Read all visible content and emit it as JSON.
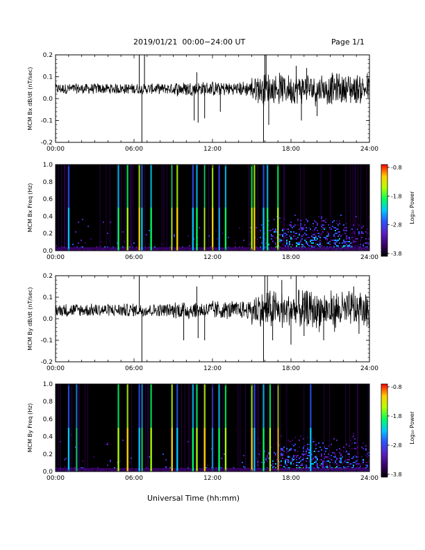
{
  "header": {
    "title": "2019/01/21  00:00−24:00 UT",
    "page": "Page 1/1"
  },
  "footer": {
    "xlabel": "Universal Time (hh:mm)"
  },
  "colorbar": {
    "title": "Log₁₀ Power",
    "ticks": [
      "-0.8",
      "-1.8",
      "-2.8",
      "-3.8"
    ],
    "range": [
      -3.8,
      -0.8
    ]
  },
  "colors": {
    "trace": "#000000",
    "frame": "#000000",
    "background": "#ffffff"
  },
  "chart_data": [
    {
      "type": "line",
      "ylabel": "MCM Bx dB/dt (nT/sec)",
      "xticks": [
        "00:00",
        "06:00",
        "12:00",
        "18:00",
        "24:00"
      ],
      "xlim": [
        0,
        24
      ],
      "ylim": [
        -0.2,
        0.2
      ],
      "yticks": [
        "0.2",
        "0.1",
        "0.0",
        "-0.1",
        "-0.2"
      ],
      "baseline": 0.045,
      "noise": 0.012,
      "spikes": [
        [
          6.4,
          0.2
        ],
        [
          6.6,
          -0.2
        ],
        [
          6.8,
          0.2
        ],
        [
          10.6,
          -0.1
        ],
        [
          10.8,
          0.12
        ],
        [
          10.9,
          -0.11
        ],
        [
          11.4,
          -0.09
        ],
        [
          12.6,
          -0.06
        ],
        [
          15.9,
          -0.2
        ],
        [
          16.0,
          0.2
        ],
        [
          16.1,
          0.2
        ],
        [
          16.3,
          -0.12
        ],
        [
          18.4,
          0.15
        ],
        [
          18.8,
          -0.1
        ],
        [
          19.2,
          0.14
        ],
        [
          20.0,
          -0.08
        ]
      ]
    },
    {
      "type": "heatmap",
      "ylabel": "MCM Bx Freq (Hz)",
      "xticks": [
        "00:00",
        "06:00",
        "12:00",
        "18:00",
        "24:00"
      ],
      "xlim": [
        0,
        24
      ],
      "ylim": [
        0,
        1.0
      ],
      "yticks": [
        "1.0",
        "0.8",
        "0.6",
        "0.4",
        "0.2",
        "0.0"
      ],
      "burst_times": [
        1.0,
        4.8,
        5.5,
        6.4,
        6.6,
        7.3,
        8.9,
        9.3,
        10.5,
        10.8,
        11.4,
        12.0,
        12.5,
        13.0,
        15.0,
        15.2,
        15.9,
        16.2,
        17.0
      ]
    },
    {
      "type": "line",
      "ylabel": "MCM By dB/dt (nT/sec)",
      "xticks": [
        "00:00",
        "06:00",
        "12:00",
        "18:00",
        "24:00"
      ],
      "xlim": [
        0,
        24
      ],
      "ylim": [
        -0.2,
        0.2
      ],
      "yticks": [
        "0.2",
        "0.1",
        "0.0",
        "-0.1",
        "-0.2"
      ],
      "baseline": 0.04,
      "noise": 0.015,
      "spikes": [
        [
          6.6,
          -0.2
        ],
        [
          6.4,
          0.2
        ],
        [
          9.8,
          -0.1
        ],
        [
          10.8,
          0.15
        ],
        [
          10.9,
          -0.09
        ],
        [
          11.4,
          -0.1
        ],
        [
          15.9,
          -0.2
        ],
        [
          16.0,
          0.2
        ],
        [
          16.2,
          0.2
        ],
        [
          16.6,
          -0.1
        ],
        [
          17.3,
          0.18
        ],
        [
          18.0,
          -0.12
        ],
        [
          18.4,
          0.2
        ],
        [
          19.0,
          -0.08
        ],
        [
          20.5,
          -0.1
        ],
        [
          22.8,
          0.15
        ],
        [
          23.2,
          -0.07
        ]
      ]
    },
    {
      "type": "heatmap",
      "ylabel": "MCM By Freq (Hz)",
      "xticks": [
        "00:00",
        "06:00",
        "12:00",
        "18:00",
        "24:00"
      ],
      "xlim": [
        0,
        24
      ],
      "ylim": [
        0,
        1.0
      ],
      "yticks": [
        "1.0",
        "0.8",
        "0.6",
        "0.4",
        "0.2",
        "0.0"
      ],
      "burst_times": [
        1.0,
        1.6,
        4.8,
        5.5,
        6.4,
        6.6,
        7.3,
        8.9,
        9.3,
        10.5,
        10.8,
        11.4,
        12.0,
        12.5,
        13.0,
        15.0,
        15.2,
        15.9,
        16.4,
        17.0,
        19.5
      ]
    }
  ]
}
